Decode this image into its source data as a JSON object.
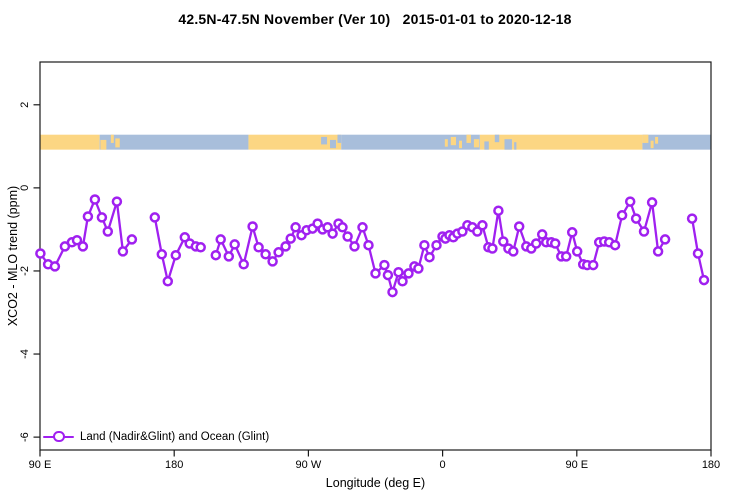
{
  "title": "42.5N-47.5N November (Ver 10)   2015-01-01 to 2020-12-18",
  "chart_data": {
    "type": "line",
    "title": "42.5N-47.5N November (Ver 10)   2015-01-01 to 2020-12-18",
    "xlabel": "Longitude (deg E)",
    "ylabel": "XCO2 - MLO trend (ppm)",
    "xlim": [
      90,
      540
    ],
    "ylim": [
      -6.31,
      3.03
    ],
    "grid": false,
    "x_ticks": [
      {
        "value": 90,
        "label": "90 E"
      },
      {
        "value": 180,
        "label": "180"
      },
      {
        "value": 270,
        "label": "90 W"
      },
      {
        "value": 360,
        "label": "0"
      },
      {
        "value": 450,
        "label": "90 E"
      },
      {
        "value": 540,
        "label": "180"
      }
    ],
    "y_ticks": [
      {
        "value": 2,
        "label": "2"
      },
      {
        "value": 0,
        "label": "0"
      },
      {
        "value": -2,
        "label": "-2"
      },
      {
        "value": -4,
        "label": "-4"
      },
      {
        "value": -6,
        "label": "-6"
      }
    ],
    "legend": {
      "label": "Land (Nadir&Glint) and Ocean (Glint)",
      "position": "bottom-left"
    },
    "series": [
      {
        "name": "Land (Nadir&Glint) and Ocean (Glint)",
        "color": "#A020F0",
        "marker": "open-circle",
        "segments": [
          [
            [
              90.3,
              -1.58
            ],
            [
              95.4,
              -1.84
            ],
            [
              100.0,
              -1.89
            ],
            [
              106.7,
              -1.41
            ],
            [
              111.4,
              -1.31
            ],
            [
              114.8,
              -1.26
            ],
            [
              118.8,
              -1.41
            ],
            [
              122.1,
              -0.69
            ],
            [
              126.8,
              -0.28
            ],
            [
              131.5,
              -0.71
            ],
            [
              135.5,
              -1.05
            ],
            [
              141.6,
              -0.33
            ],
            [
              145.6,
              -1.53
            ],
            [
              151.6,
              -1.24
            ]
          ],
          [
            [
              167.0,
              -0.71
            ],
            [
              171.7,
              -1.6
            ],
            [
              175.7,
              -2.25
            ],
            [
              181.1,
              -1.62
            ],
            [
              187.1,
              -1.19
            ],
            [
              190.4,
              -1.34
            ],
            [
              194.5,
              -1.41
            ],
            [
              197.8,
              -1.43
            ]
          ],
          [
            [
              207.9,
              -1.62
            ],
            [
              211.2,
              -1.24
            ],
            [
              216.6,
              -1.65
            ],
            [
              220.6,
              -1.36
            ],
            [
              226.6,
              -1.84
            ],
            [
              232.6,
              -0.93
            ],
            [
              236.6,
              -1.43
            ],
            [
              241.3,
              -1.6
            ],
            [
              246.0,
              -1.77
            ],
            [
              250.0,
              -1.55
            ],
            [
              254.7,
              -1.41
            ],
            [
              258.1,
              -1.22
            ],
            [
              261.4,
              -0.95
            ],
            [
              265.4,
              -1.14
            ],
            [
              268.8,
              -1.02
            ],
            [
              272.8,
              -0.98
            ],
            [
              276.2,
              -0.86
            ],
            [
              279.5,
              -1.0
            ],
            [
              282.9,
              -0.95
            ],
            [
              286.2,
              -1.1
            ],
            [
              290.2,
              -0.86
            ],
            [
              292.9,
              -0.95
            ],
            [
              296.3,
              -1.17
            ],
            [
              300.9,
              -1.41
            ],
            [
              306.3,
              -0.95
            ],
            [
              310.3,
              -1.38
            ],
            [
              315.0,
              -2.06
            ],
            [
              321.0,
              -1.86
            ],
            [
              323.3,
              -2.1
            ],
            [
              326.4,
              -2.51
            ],
            [
              330.4,
              -2.03
            ],
            [
              333.1,
              -2.25
            ],
            [
              337.1,
              -2.06
            ],
            [
              341.1,
              -1.89
            ],
            [
              343.8,
              -1.94
            ],
            [
              347.8,
              -1.38
            ],
            [
              351.2,
              -1.67
            ],
            [
              355.9,
              -1.38
            ],
            [
              359.9,
              -1.17
            ],
            [
              361.9,
              -1.22
            ],
            [
              364.6,
              -1.14
            ],
            [
              367.2,
              -1.19
            ],
            [
              369.9,
              -1.1
            ],
            [
              373.3,
              -1.05
            ],
            [
              376.6,
              -0.9
            ],
            [
              380.0,
              -0.95
            ],
            [
              383.3,
              -1.05
            ],
            [
              386.7,
              -0.9
            ],
            [
              390.7,
              -1.43
            ],
            [
              393.4,
              -1.46
            ],
            [
              397.4,
              -0.55
            ],
            [
              400.7,
              -1.29
            ],
            [
              404.1,
              -1.46
            ],
            [
              407.4,
              -1.53
            ],
            [
              411.4,
              -0.93
            ],
            [
              416.1,
              -1.41
            ],
            [
              419.5,
              -1.46
            ],
            [
              422.8,
              -1.34
            ],
            [
              426.8,
              -1.12
            ],
            [
              429.5,
              -1.31
            ],
            [
              432.9,
              -1.31
            ],
            [
              435.5,
              -1.34
            ],
            [
              439.6,
              -1.65
            ],
            [
              442.9,
              -1.65
            ],
            [
              446.9,
              -1.07
            ],
            [
              450.3,
              -1.53
            ],
            [
              454.3,
              -1.84
            ],
            [
              457.0,
              -1.86
            ],
            [
              461.0,
              -1.86
            ],
            [
              465.0,
              -1.31
            ],
            [
              468.4,
              -1.29
            ],
            [
              471.7,
              -1.31
            ],
            [
              475.7,
              -1.38
            ],
            [
              480.4,
              -0.66
            ],
            [
              485.8,
              -0.33
            ],
            [
              489.8,
              -0.74
            ],
            [
              495.1,
              -1.05
            ],
            [
              500.5,
              -0.35
            ],
            [
              504.5,
              -1.53
            ],
            [
              509.2,
              -1.24
            ]
          ],
          [
            [
              527.3,
              -0.74
            ],
            [
              531.3,
              -1.58
            ],
            [
              535.3,
              -2.22
            ]
          ]
        ]
      }
    ],
    "map_strip": {
      "description": "land-ocean-mask",
      "y_top": 1.28,
      "y_bottom": 0.92,
      "land_color": "#FCD683",
      "ocean_color": "#A8BEDB",
      "segments": [
        {
          "x1": 90,
          "x2": 130,
          "type": "land"
        },
        {
          "x1": 130,
          "x2": 229.8,
          "type": "ocean"
        },
        {
          "x1": 229.8,
          "x2": 292,
          "type": "land"
        },
        {
          "x1": 292,
          "x2": 385,
          "type": "ocean"
        },
        {
          "x1": 385,
          "x2": 494,
          "type": "land"
        },
        {
          "x1": 494,
          "x2": 540,
          "type": "ocean"
        }
      ],
      "patches": [
        {
          "x1": 130.5,
          "x2": 134.5,
          "t": 0.35,
          "b": 1,
          "type": "land"
        },
        {
          "x1": 137.5,
          "x2": 139.5,
          "t": 0,
          "b": 0.55,
          "type": "land"
        },
        {
          "x1": 140.5,
          "x2": 143.5,
          "t": 0.25,
          "b": 0.85,
          "type": "land"
        },
        {
          "x1": 278.5,
          "x2": 282.5,
          "t": 0.15,
          "b": 0.65,
          "type": "ocean"
        },
        {
          "x1": 284.5,
          "x2": 288.5,
          "t": 0.35,
          "b": 0.9,
          "type": "ocean"
        },
        {
          "x1": 289.5,
          "x2": 292,
          "t": 0,
          "b": 0.55,
          "type": "ocean"
        },
        {
          "x1": 361.5,
          "x2": 363.5,
          "t": 0.3,
          "b": 0.8,
          "type": "land"
        },
        {
          "x1": 365.5,
          "x2": 369,
          "t": 0.15,
          "b": 0.7,
          "type": "land"
        },
        {
          "x1": 371,
          "x2": 373,
          "t": 0.4,
          "b": 0.9,
          "type": "land"
        },
        {
          "x1": 376,
          "x2": 379,
          "t": 0,
          "b": 0.55,
          "type": "land"
        },
        {
          "x1": 381,
          "x2": 384.5,
          "t": 0.3,
          "b": 0.85,
          "type": "land"
        },
        {
          "x1": 388,
          "x2": 391,
          "t": 0.45,
          "b": 1,
          "type": "ocean"
        },
        {
          "x1": 395,
          "x2": 398,
          "t": 0,
          "b": 0.5,
          "type": "ocean"
        },
        {
          "x1": 401.5,
          "x2": 406.5,
          "t": 0.3,
          "b": 1,
          "type": "ocean"
        },
        {
          "x1": 408,
          "x2": 409.5,
          "t": 0.5,
          "b": 1,
          "type": "ocean"
        },
        {
          "x1": 494,
          "x2": 498,
          "t": 0,
          "b": 0.55,
          "type": "land"
        },
        {
          "x1": 499.5,
          "x2": 501.5,
          "t": 0.4,
          "b": 0.9,
          "type": "land"
        },
        {
          "x1": 502.5,
          "x2": 504.5,
          "t": 0.15,
          "b": 0.6,
          "type": "land"
        }
      ]
    }
  },
  "colors": {
    "series": "#A020F0",
    "land": "#FCD683",
    "ocean": "#A8BEDB",
    "axis": "#1a1a1a",
    "background": "#ffffff"
  }
}
